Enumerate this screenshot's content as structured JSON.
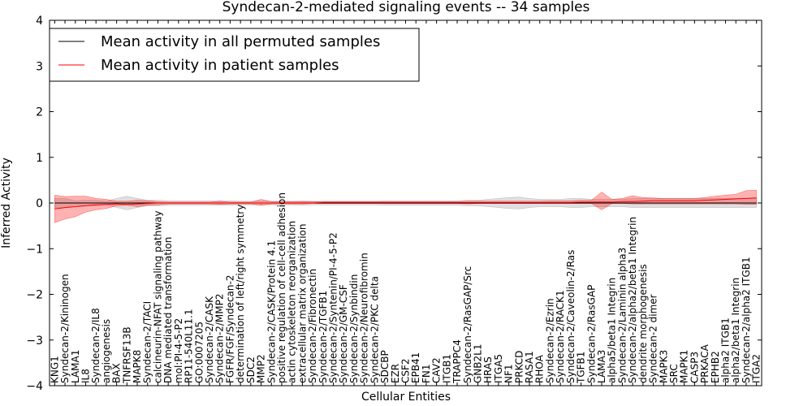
{
  "chart_data": {
    "type": "line",
    "title": "Syndecan-2-mediated signaling events -- 34 samples",
    "xlabel": "Cellular Entities",
    "ylabel": "Inferred Activity",
    "ylim": [
      -4,
      4
    ],
    "yticks": [
      -4,
      -3,
      -2,
      -1,
      0,
      1,
      2,
      3,
      4
    ],
    "grid": false,
    "legend_position": "top-left",
    "categories": [
      "KNG1",
      "Syndecan-2/Kininogen",
      "LAMA1",
      "IL8",
      "Syndecan-2/IL8",
      "angiogenesis",
      "BAX",
      "TNFRSF13B",
      "MAPK8",
      "Syndecan-2/TACI",
      "calcineurin-NFAT signaling pathway",
      "DNA mediated transformation",
      "mol:PI-4-5-P2",
      "RP11-540L11.1",
      "GO:0007205",
      "Syndecan-2/CASK",
      "Syndecan-2/MMP2",
      "FGFR/FGF/Syndecan-2",
      "determination of left/right symmetry",
      "SDC2",
      "MMP2",
      "Syndecan-2/CASK/Protein 4.1",
      "positive regulation of cell-cell adhesion",
      "actin cytoskeleton reorganization",
      "extracellular matrix organization",
      "Syndecan-2/Fibronectin",
      "Syndecan-2/TGFB1",
      "Syndecan-2/Syntenin/PI-4-5-P2",
      "Syndecan-2/GM-CSF",
      "Syndecan-2/Synbindin",
      "Syndecan-2/Neurofibromin",
      "Syndecan-2/PKC delta",
      "SDCBP",
      "EZR",
      "CSF2",
      "EPB41",
      "FN1",
      "CAV2",
      "ITGB1",
      "TRAPPC4",
      "Syndecan-2/RasGAP/Src",
      "GNB2L1",
      "HRAS",
      "ITGA5",
      "NF1",
      "PRKCD",
      "RASA1",
      "RHOA",
      "Syndecan-2/Ezrin",
      "Syndecan-2/RACK1",
      "Syndecan-2/Caveolin-2/Ras",
      "TGFB1",
      "Syndecan-2/RasGAP",
      "LAMA3",
      "alpha5/beta1 Integrin",
      "Syndecan-2/Laminin alpha3",
      "Syndecan-2/alpha2/beta1 Integrin",
      "dendrite morphogenesis",
      "Syndecan-2 dimer",
      "MAPK3",
      "SRC",
      "MAPK1",
      "CASP3",
      "PRKACA",
      "EPHB2",
      "alpha2 ITGB1",
      "alpha2/beta1 Integrin",
      "Syndecan-2/alpha2 ITGB1",
      "ITGA2"
    ],
    "series": [
      {
        "name": "Mean activity in all permuted samples",
        "color": "#000000",
        "values": [
          0.0,
          0.0,
          0.0,
          0.0,
          0.0,
          0.0,
          0.0,
          0.0,
          0.0,
          0.0,
          0.0,
          0.0,
          0.0,
          0.0,
          0.0,
          0.0,
          0.0,
          0.0,
          0.0,
          0.0,
          0.0,
          0.0,
          0.0,
          0.0,
          0.0,
          0.0,
          0.0,
          0.0,
          0.0,
          0.0,
          0.0,
          0.0,
          0.0,
          0.0,
          0.0,
          0.0,
          0.0,
          0.0,
          0.0,
          0.0,
          0.0,
          0.0,
          0.0,
          0.0,
          0.0,
          0.0,
          0.0,
          0.0,
          0.0,
          0.0,
          0.0,
          0.0,
          0.0,
          0.0,
          0.0,
          0.0,
          0.0,
          0.0,
          0.0,
          0.0,
          0.0,
          0.0,
          0.0,
          0.0,
          0.0,
          0.0,
          0.0,
          0.0,
          0.0
        ],
        "band_low": [
          -0.1,
          -0.1,
          -0.05,
          -0.06,
          -0.06,
          -0.04,
          -0.1,
          -0.15,
          -0.1,
          -0.06,
          -0.06,
          -0.05,
          -0.05,
          -0.05,
          -0.05,
          -0.05,
          -0.05,
          -0.05,
          -0.04,
          -0.04,
          -0.04,
          -0.04,
          -0.04,
          -0.04,
          -0.05,
          -0.04,
          -0.04,
          -0.04,
          -0.04,
          -0.04,
          -0.04,
          -0.04,
          -0.05,
          -0.05,
          -0.05,
          -0.05,
          -0.05,
          -0.05,
          -0.05,
          -0.05,
          -0.06,
          -0.06,
          -0.08,
          -0.1,
          -0.12,
          -0.13,
          -0.1,
          -0.08,
          -0.08,
          -0.08,
          -0.1,
          -0.1,
          -0.08,
          -0.08,
          -0.08,
          -0.08,
          -0.1,
          -0.1,
          -0.1,
          -0.1,
          -0.1,
          -0.1,
          -0.1,
          -0.1,
          -0.1,
          -0.1,
          -0.1,
          -0.1,
          -0.1
        ],
        "band_high": [
          0.1,
          0.1,
          0.05,
          0.06,
          0.06,
          0.04,
          0.1,
          0.15,
          0.1,
          0.06,
          0.06,
          0.05,
          0.05,
          0.05,
          0.05,
          0.05,
          0.05,
          0.05,
          0.04,
          0.04,
          0.04,
          0.04,
          0.04,
          0.04,
          0.05,
          0.04,
          0.04,
          0.04,
          0.04,
          0.04,
          0.04,
          0.04,
          0.05,
          0.05,
          0.05,
          0.05,
          0.05,
          0.05,
          0.05,
          0.05,
          0.06,
          0.06,
          0.08,
          0.1,
          0.12,
          0.13,
          0.1,
          0.08,
          0.08,
          0.08,
          0.1,
          0.1,
          0.08,
          0.08,
          0.08,
          0.08,
          0.1,
          0.1,
          0.1,
          0.1,
          0.1,
          0.1,
          0.1,
          0.1,
          0.1,
          0.1,
          0.1,
          0.1,
          0.1
        ]
      },
      {
        "name": "Mean activity in patient samples",
        "color": "#ff0000",
        "values": [
          -0.13,
          -0.1,
          -0.08,
          -0.06,
          -0.04,
          -0.03,
          -0.02,
          -0.03,
          -0.02,
          -0.01,
          0.0,
          0.0,
          0.0,
          0.0,
          0.0,
          0.0,
          0.0,
          0.0,
          0.0,
          0.0,
          0.0,
          0.0,
          0.0,
          0.0,
          0.0,
          0.0,
          0.01,
          0.01,
          0.01,
          0.01,
          0.01,
          0.01,
          0.01,
          0.01,
          0.01,
          0.01,
          0.01,
          0.01,
          0.01,
          0.01,
          0.01,
          0.01,
          0.01,
          0.01,
          0.01,
          0.01,
          0.01,
          0.01,
          0.01,
          0.01,
          0.01,
          0.02,
          0.02,
          0.02,
          0.02,
          0.03,
          0.03,
          0.04,
          0.05,
          0.05,
          0.05,
          0.05,
          0.05,
          0.06,
          0.07,
          0.08,
          0.09,
          0.1,
          0.11
        ],
        "band_low": [
          -0.43,
          -0.35,
          -0.3,
          -0.2,
          -0.15,
          -0.12,
          -0.06,
          -0.05,
          -0.08,
          -0.05,
          -0.04,
          -0.02,
          -0.02,
          -0.02,
          -0.02,
          -0.02,
          -0.03,
          -0.02,
          -0.02,
          -0.02,
          -0.05,
          -0.02,
          -0.02,
          -0.02,
          -0.02,
          -0.01,
          -0.01,
          -0.01,
          -0.01,
          -0.01,
          -0.01,
          -0.01,
          -0.01,
          -0.01,
          -0.01,
          -0.01,
          -0.01,
          -0.01,
          -0.01,
          -0.01,
          -0.02,
          -0.01,
          -0.01,
          -0.01,
          -0.01,
          -0.01,
          -0.01,
          -0.01,
          -0.01,
          -0.01,
          -0.01,
          -0.01,
          -0.01,
          -0.15,
          -0.01,
          -0.01,
          -0.02,
          -0.02,
          -0.02,
          -0.02,
          -0.02,
          -0.02,
          -0.02,
          -0.02,
          -0.02,
          -0.02,
          -0.02,
          -0.03,
          -0.03
        ],
        "band_high": [
          0.17,
          0.14,
          0.15,
          0.15,
          0.1,
          0.08,
          0.04,
          0.04,
          0.06,
          0.05,
          0.03,
          0.02,
          0.02,
          0.02,
          0.02,
          0.02,
          0.04,
          0.02,
          0.02,
          0.02,
          0.08,
          0.03,
          0.03,
          0.03,
          0.03,
          0.03,
          0.03,
          0.03,
          0.03,
          0.03,
          0.03,
          0.03,
          0.03,
          0.03,
          0.03,
          0.03,
          0.03,
          0.03,
          0.03,
          0.03,
          0.04,
          0.04,
          0.04,
          0.04,
          0.04,
          0.04,
          0.04,
          0.04,
          0.05,
          0.05,
          0.05,
          0.06,
          0.06,
          0.24,
          0.08,
          0.1,
          0.16,
          0.12,
          0.11,
          0.1,
          0.1,
          0.1,
          0.1,
          0.12,
          0.15,
          0.17,
          0.19,
          0.27,
          0.28
        ]
      }
    ]
  }
}
